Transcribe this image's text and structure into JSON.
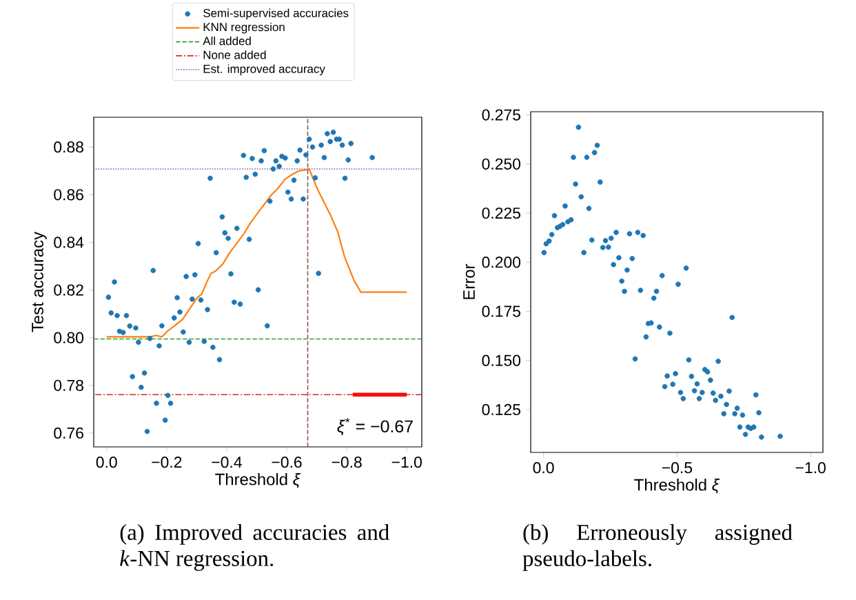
{
  "chart_data": [
    {
      "type": "scatter",
      "xlabel": "Threshold *ξ*",
      "ylabel": "Test accuracy",
      "xlim": [
        0.043,
        -1.05
      ],
      "ylim": [
        0.7542,
        0.8925
      ],
      "xticks": [
        {
          "value": 0,
          "label": "0.0"
        },
        {
          "value": -0.2,
          "label": "−0.2"
        },
        {
          "value": -0.4,
          "label": "−0.4"
        },
        {
          "value": -0.6,
          "label": "−0.6"
        },
        {
          "value": -0.8,
          "label": "−0.8"
        },
        {
          "value": -1.0,
          "label": "−1.0"
        }
      ],
      "yticks": [
        {
          "value": 0.76,
          "label": "0.76"
        },
        {
          "value": 0.78,
          "label": "0.78"
        },
        {
          "value": 0.8,
          "label": "0.80"
        },
        {
          "value": 0.82,
          "label": "0.82"
        },
        {
          "value": 0.84,
          "label": "0.84"
        },
        {
          "value": 0.86,
          "label": "0.86"
        },
        {
          "value": 0.88,
          "label": "0.88"
        }
      ],
      "legend": "top",
      "series": [
        {
          "name": "Semi-supervised accuracies",
          "type": "scatter",
          "marker": "circle",
          "color": "#1f77b4",
          "x": [
            -0.006,
            -0.015,
            -0.026,
            -0.035,
            -0.043,
            -0.055,
            -0.066,
            -0.077,
            -0.086,
            -0.097,
            -0.106,
            -0.115,
            -0.126,
            -0.135,
            -0.144,
            -0.155,
            -0.166,
            -0.175,
            -0.184,
            -0.195,
            -0.204,
            -0.213,
            -0.225,
            -0.235,
            -0.244,
            -0.255,
            -0.265,
            -0.275,
            -0.285,
            -0.294,
            -0.305,
            -0.314,
            -0.325,
            -0.336,
            -0.345,
            -0.354,
            -0.365,
            -0.376,
            -0.385,
            -0.394,
            -0.405,
            -0.414,
            -0.425,
            -0.434,
            -0.445,
            -0.456,
            -0.465,
            -0.475,
            -0.485,
            -0.495,
            -0.505,
            -0.515,
            -0.525,
            -0.535,
            -0.544,
            -0.555,
            -0.564,
            -0.575,
            -0.584,
            -0.595,
            -0.604,
            -0.615,
            -0.624,
            -0.635,
            -0.644,
            -0.655,
            -0.664,
            -0.675,
            -0.686,
            -0.695,
            -0.706,
            -0.715,
            -0.725,
            -0.735,
            -0.745,
            -0.755,
            -0.766,
            -0.775,
            -0.785,
            -0.794,
            -0.805,
            -0.814,
            -0.885
          ],
          "values": [
            0.817,
            0.8104,
            0.8234,
            0.8093,
            0.8027,
            0.8022,
            0.8093,
            0.8049,
            0.7837,
            0.8041,
            0.7981,
            0.7792,
            0.7852,
            0.7607,
            0.7997,
            0.8282,
            0.7725,
            0.7966,
            0.805,
            0.7654,
            0.7758,
            0.7725,
            0.8083,
            0.8168,
            0.8108,
            0.8024,
            0.8257,
            0.7981,
            0.8162,
            0.8264,
            0.8395,
            0.8158,
            0.7985,
            0.8118,
            0.8669,
            0.796,
            0.8357,
            0.7908,
            0.8507,
            0.844,
            0.8417,
            0.8268,
            0.8149,
            0.8459,
            0.8141,
            0.8765,
            0.8673,
            0.8413,
            0.8752,
            0.8686,
            0.8201,
            0.8742,
            0.8785,
            0.805,
            0.8573,
            0.8708,
            0.8742,
            0.8719,
            0.8761,
            0.8754,
            0.8611,
            0.8582,
            0.8661,
            0.8742,
            0.8787,
            0.8582,
            0.8767,
            0.8833,
            0.88,
            0.8671,
            0.827,
            0.8808,
            0.8756,
            0.8856,
            0.8823,
            0.8862,
            0.8833,
            0.8833,
            0.8808,
            0.8669,
            0.8746,
            0.8815,
            0.8756
          ]
        },
        {
          "name": "KNN regression",
          "type": "line",
          "color": "#ff7f0e",
          "x": [
            0,
            -0.149,
            -0.164,
            -0.184,
            -0.204,
            -0.225,
            -0.253,
            -0.279,
            -0.302,
            -0.317,
            -0.333,
            -0.348,
            -0.363,
            -0.387,
            -0.41,
            -0.433,
            -0.456,
            -0.479,
            -0.502,
            -0.525,
            -0.548,
            -0.571,
            -0.594,
            -0.617,
            -0.64,
            -0.663,
            -0.675,
            -0.701,
            -0.724,
            -0.747,
            -0.77,
            -0.793,
            -0.824,
            -0.847,
            -1.0
          ],
          "values": [
            0.8004,
            0.8004,
            0.801,
            0.8004,
            0.8029,
            0.8049,
            0.8077,
            0.8126,
            0.8168,
            0.8183,
            0.8232,
            0.827,
            0.828,
            0.8309,
            0.8357,
            0.8395,
            0.8434,
            0.8482,
            0.8521,
            0.8559,
            0.8598,
            0.8627,
            0.8665,
            0.8684,
            0.87,
            0.8704,
            0.8708,
            0.8627,
            0.8569,
            0.8511,
            0.8444,
            0.8338,
            0.8241,
            0.8191,
            0.8191
          ]
        },
        {
          "type": "line",
          "color": "#ff0000",
          "x": [
            -0.82,
            -1.0
          ],
          "values": [
            0.7761,
            0.7761
          ]
        }
      ],
      "ref_lines": [
        {
          "axis": "y",
          "value": 0.7995,
          "label": "All added",
          "color": "#2ca02c",
          "line_style": "dashed"
        },
        {
          "axis": "y",
          "value": 0.7761,
          "label": "None added",
          "color": "#d62728",
          "line_style": "dashdot"
        },
        {
          "axis": "y",
          "value": 0.8708,
          "label": "Est. improved accuracy",
          "color": "#9467bd",
          "line_style": "dotted"
        },
        {
          "axis": "x",
          "value": -0.67,
          "label": "*ξ*$^{*}$ = −0.67",
          "color": "#8c564b",
          "line_style": "dashed"
        }
      ],
      "annotations": [
        "(a) Improved accuracies and *k*-NN regression."
      ]
    },
    {
      "type": "scatter",
      "xlabel": "Threshold *ξ*",
      "ylabel": "Error",
      "xlim": [
        0.048,
        -1.046
      ],
      "ylim": [
        0.1032,
        0.2766
      ],
      "xticks": [
        {
          "value": 0,
          "label": "0.0"
        },
        {
          "value": -0.5,
          "label": "−0.5"
        },
        {
          "value": -1.0,
          "label": "−1.0"
        }
      ],
      "yticks": [
        0.125,
        {
          "value": 0.15,
          "label": "0.150"
        },
        0.175,
        {
          "value": 0.2,
          "label": "0.200"
        },
        0.225,
        {
          "value": 0.25,
          "label": "0.250"
        },
        0.275
      ],
      "series": [
        {
          "color": "#1f77b4",
          "marker": "circle",
          "x": [
            -0.002,
            -0.01,
            -0.021,
            -0.031,
            -0.041,
            -0.052,
            -0.062,
            -0.072,
            -0.081,
            -0.091,
            -0.103,
            -0.112,
            -0.12,
            -0.131,
            -0.141,
            -0.151,
            -0.162,
            -0.17,
            -0.181,
            -0.191,
            -0.201,
            -0.212,
            -0.222,
            -0.232,
            -0.243,
            -0.253,
            -0.262,
            -0.272,
            -0.282,
            -0.293,
            -0.303,
            -0.313,
            -0.322,
            -0.332,
            -0.343,
            -0.353,
            -0.363,
            -0.373,
            -0.384,
            -0.392,
            -0.403,
            -0.413,
            -0.423,
            -0.434,
            -0.444,
            -0.454,
            -0.463,
            -0.473,
            -0.484,
            -0.494,
            -0.504,
            -0.513,
            -0.523,
            -0.534,
            -0.544,
            -0.554,
            -0.565,
            -0.575,
            -0.583,
            -0.594,
            -0.604,
            -0.614,
            -0.625,
            -0.635,
            -0.644,
            -0.654,
            -0.664,
            -0.675,
            -0.685,
            -0.695,
            -0.706,
            -0.716,
            -0.725,
            -0.735,
            -0.745,
            -0.756,
            -0.766,
            -0.776,
            -0.787,
            -0.795,
            -0.806,
            -0.816,
            -0.886
          ],
          "values": [
            0.2049,
            0.2094,
            0.2108,
            0.2141,
            0.2237,
            0.2176,
            0.2183,
            0.2192,
            0.2286,
            0.2206,
            0.2216,
            0.2534,
            0.2398,
            0.2687,
            0.2333,
            0.2049,
            0.2534,
            0.2274,
            0.2113,
            0.2558,
            0.2595,
            0.2408,
            0.2075,
            0.211,
            0.2077,
            0.2122,
            0.1988,
            0.2152,
            0.2023,
            0.1904,
            0.1852,
            0.196,
            0.2145,
            0.2019,
            0.1508,
            0.2152,
            0.1857,
            0.2136,
            0.162,
            0.1688,
            0.1691,
            0.1817,
            0.1852,
            0.167,
            0.1932,
            0.1367,
            0.1421,
            0.1639,
            0.1379,
            0.1433,
            0.1888,
            0.1337,
            0.1306,
            0.197,
            0.1503,
            0.1419,
            0.1346,
            0.1381,
            0.1306,
            0.1337,
            0.1454,
            0.1442,
            0.14,
            0.1334,
            0.1297,
            0.1496,
            0.1318,
            0.1229,
            0.1276,
            0.1344,
            0.1719,
            0.1229,
            0.1257,
            0.1161,
            0.1222,
            0.1124,
            0.1161,
            0.1154,
            0.1161,
            0.1325,
            0.1234,
            0.111,
            0.1114
          ]
        }
      ],
      "annotations": [
        "(b) Erroneously assigned pseudo-labels."
      ]
    }
  ]
}
